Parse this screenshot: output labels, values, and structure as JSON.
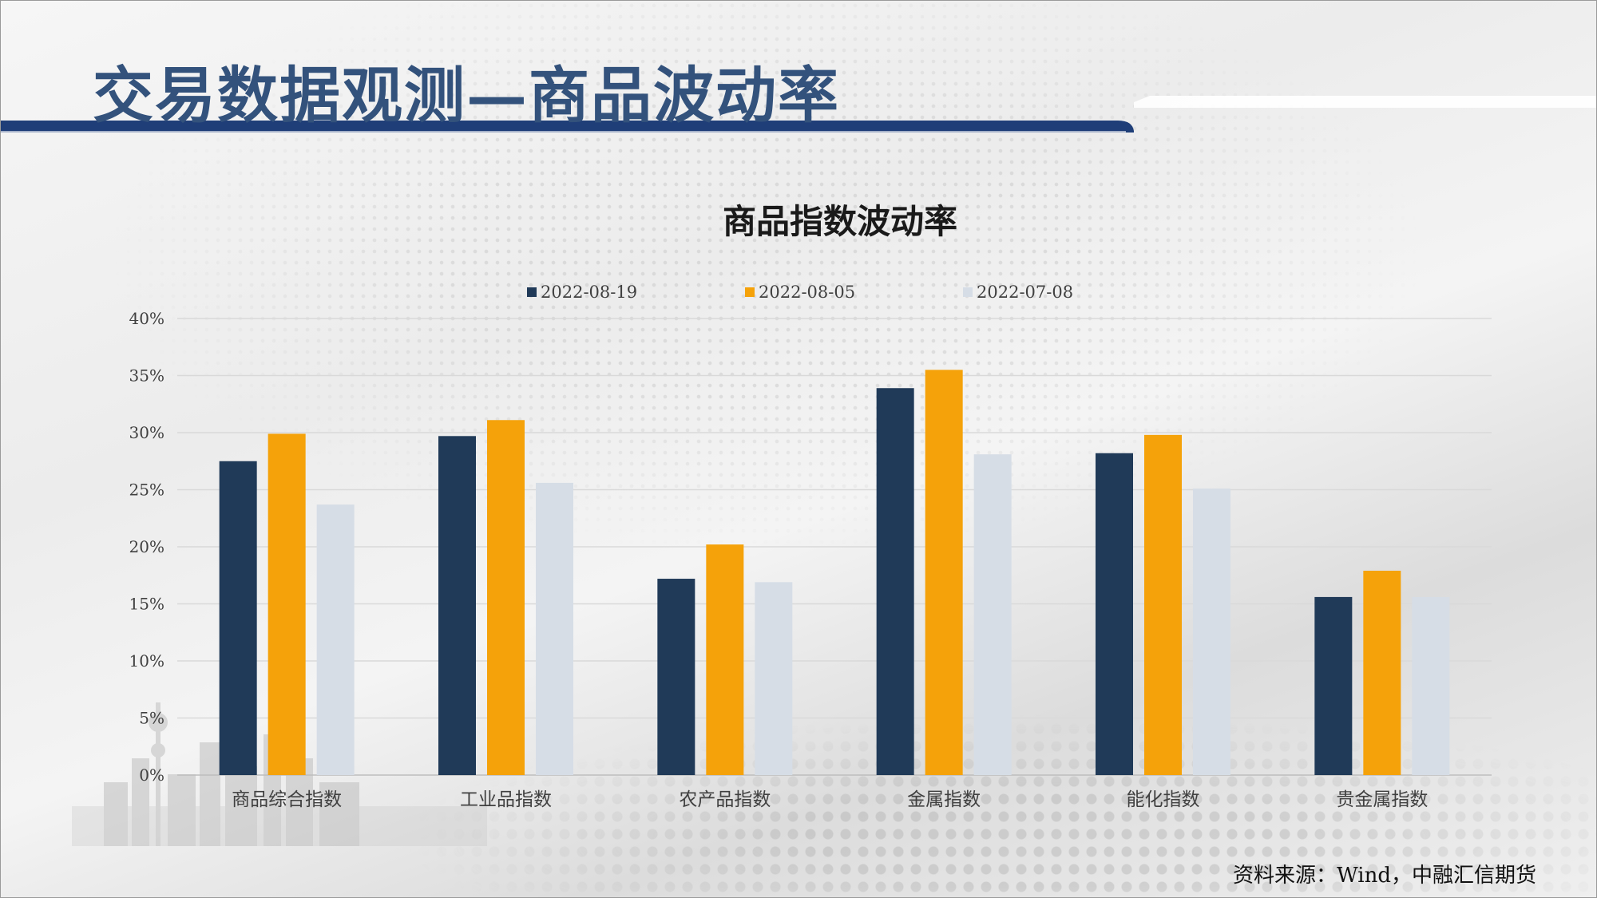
{
  "page": {
    "title": "交易数据观测—商品波动率",
    "source": "资料来源：Wind，中融汇信期货"
  },
  "colors": {
    "header_navy": "#1f3e78",
    "title_blue": "#33527c",
    "series": [
      "#203a58",
      "#f5a20a",
      "#d6dde6"
    ]
  },
  "chart_data": {
    "type": "bar",
    "title": "商品指数波动率",
    "categories": [
      "商品综合指数",
      "工业品指数",
      "农产品指数",
      "金属指数",
      "能化指数",
      "贵金属指数"
    ],
    "series": [
      {
        "name": "2022-08-19",
        "values": [
          27.5,
          29.7,
          17.2,
          33.9,
          28.2,
          15.6
        ]
      },
      {
        "name": "2022-08-05",
        "values": [
          29.9,
          31.1,
          20.2,
          35.5,
          29.8,
          17.9
        ]
      },
      {
        "name": "2022-07-08",
        "values": [
          23.7,
          25.6,
          16.9,
          28.1,
          25.1,
          15.6
        ]
      }
    ],
    "ylim": [
      0,
      40
    ],
    "yticks": [
      "0%",
      "5%",
      "10%",
      "15%",
      "20%",
      "25%",
      "30%",
      "35%",
      "40%"
    ],
    "grid": true,
    "legend_position": "top"
  }
}
